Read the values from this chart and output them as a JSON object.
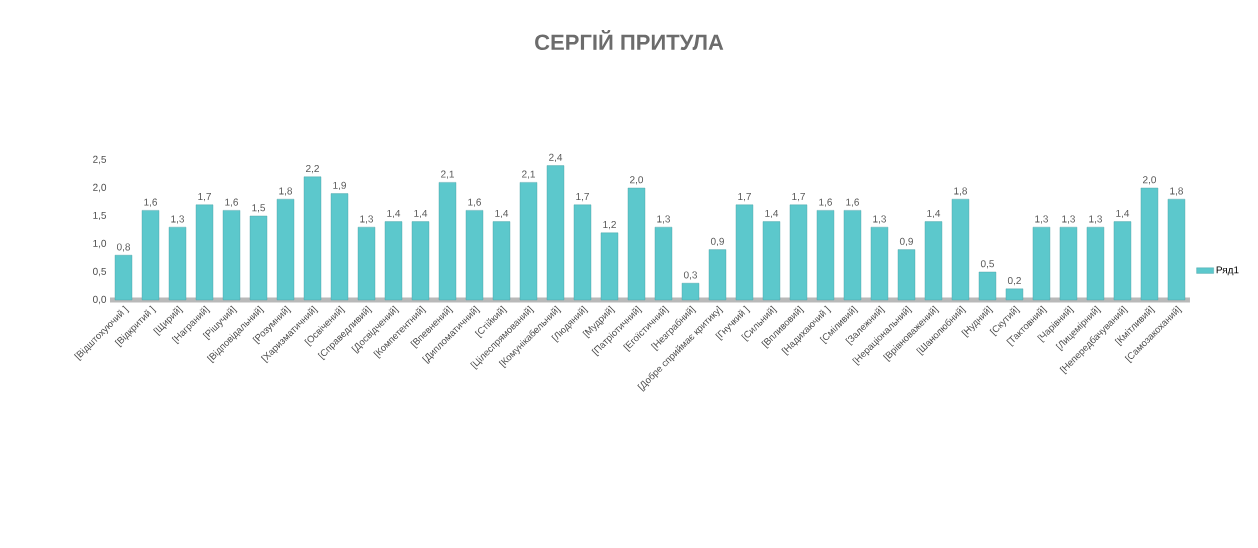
{
  "chart_data": {
    "type": "bar",
    "title": "СЕРГІЙ ПРИТУЛА",
    "categories": [
      "[Відштохуючий ]",
      "[Відкритий ]",
      "[Щирий]",
      "[Награний]",
      "[Рішучий]",
      "[Відповідальний]",
      "[Розумний]",
      "[Харизматичний]",
      "[Освічений]",
      "[Справедливий]",
      "[Досвідчений]",
      "[Компетентний]",
      "[Впевнений]",
      "[Дипломатичний]",
      "[Стійкий]",
      "[Цілеспрямований]",
      "[Комунікабельний]",
      "[Людяний]",
      "[Мудрий]",
      "[Патріотичний]",
      "[Егоїстичний]",
      "[Незграбний]",
      "[Добре сприймає критику]",
      "[Гнучкий ]",
      "[Сильний]",
      "[Впливовий]",
      "[Надихаючий ]",
      "[Сміливий]",
      "[Залежний]",
      "[Нераціональний]",
      "[Врівноважений]",
      "[Шанолюбний]",
      "[Нудний]",
      "[Скутий]",
      "[Тактовний]",
      "[Чарівний]",
      "[Лицемірний]",
      "[Непередбачуваний]",
      "[Кмітливий]",
      "[Самозакоханий]"
    ],
    "series": [
      {
        "name": "Ряд1",
        "color": "#5cc8cc",
        "values": [
          0.8,
          1.6,
          1.3,
          1.7,
          1.6,
          1.5,
          1.8,
          2.2,
          1.9,
          1.3,
          1.4,
          1.4,
          2.1,
          1.6,
          1.4,
          2.1,
          2.4,
          1.7,
          1.2,
          2.0,
          1.3,
          0.3,
          0.9,
          1.7,
          1.4,
          1.7,
          1.6,
          1.6,
          1.3,
          0.9,
          1.4,
          1.8,
          0.5,
          0.2,
          1.3,
          1.3,
          1.3,
          1.4,
          2.0,
          1.8
        ],
        "value_labels": [
          "0,8",
          "1,6",
          "1,3",
          "1,7",
          "1,6",
          "1,5",
          "1,8",
          "2,2",
          "1,9",
          "1,3",
          "1,4",
          "1,4",
          "2,1",
          "1,6",
          "1,4",
          "2,1",
          "2,4",
          "1,7",
          "1,2",
          "2,0",
          "1,3",
          "0,3",
          "0,9",
          "1,7",
          "1,4",
          "1,7",
          "1,6",
          "1,6",
          "1,3",
          "0,9",
          "1,4",
          "1,8",
          "0,5",
          "0,2",
          "1,3",
          "1,3",
          "1,3",
          "1,4",
          "2,0",
          "1,8"
        ]
      }
    ],
    "ylim": [
      0,
      2.5
    ],
    "yticks": [
      {
        "value": 0,
        "label": "0,0"
      },
      {
        "value": 0.5,
        "label": "0,5"
      },
      {
        "value": 1,
        "label": "1,0"
      },
      {
        "value": 1.5,
        "label": "1,5"
      },
      {
        "value": 2,
        "label": "2,0"
      },
      {
        "value": 2.5,
        "label": "2,5"
      }
    ],
    "legend": "right"
  }
}
